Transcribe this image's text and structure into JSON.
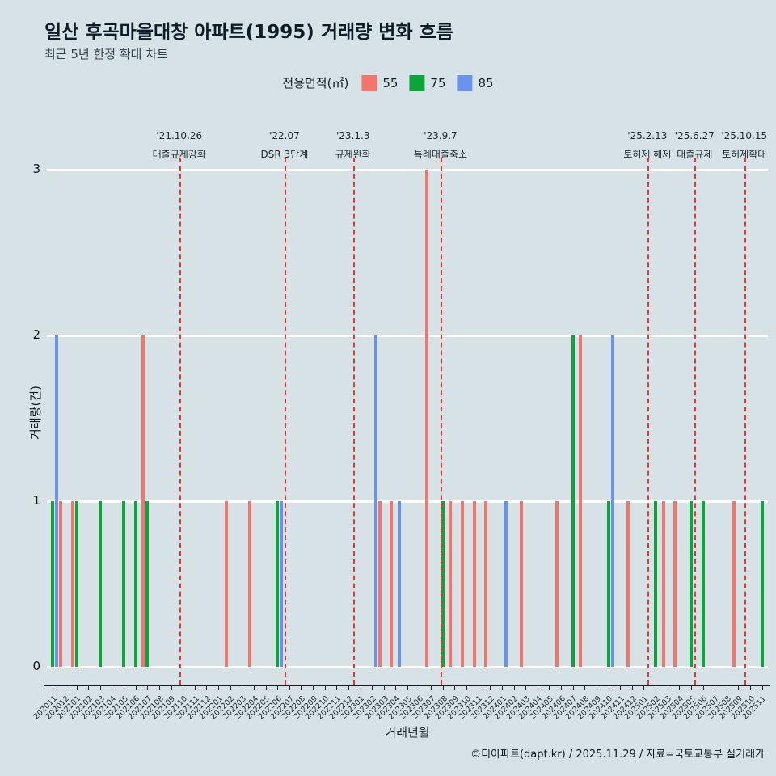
{
  "title": "일산 후곡마을대창 아파트(1995) 거래량 변화 흐름",
  "subtitle": "최근 5년 한정 확대 차트",
  "footer": "©디아파트(dapt.kr) / 2025.11.29 / 자료=국토교통부 실거래가",
  "chart_data": {
    "type": "bar",
    "title": "일산 후곡마을대창 아파트(1995) 거래량 변화 흐름",
    "legend_title": "전용면적(㎡)",
    "xlabel": "거래년월",
    "ylabel": "거래량(건)",
    "ylim": [
      0,
      3
    ],
    "yticks": [
      0,
      1,
      2,
      3
    ],
    "grid": "horizontal-white",
    "legend_position": "top-center",
    "categories": [
      "202011",
      "202012",
      "202101",
      "202102",
      "202103",
      "202104",
      "202105",
      "202106",
      "202107",
      "202108",
      "202109",
      "202110",
      "202111",
      "202112",
      "202201",
      "202202",
      "202203",
      "202204",
      "202205",
      "202206",
      "202207",
      "202208",
      "202209",
      "202210",
      "202211",
      "202212",
      "202301",
      "202302",
      "202303",
      "202304",
      "202305",
      "202306",
      "202307",
      "202308",
      "202309",
      "202310",
      "202311",
      "202312",
      "202401",
      "202402",
      "202403",
      "202404",
      "202405",
      "202406",
      "202407",
      "202408",
      "202409",
      "202410",
      "202411",
      "202412",
      "202501",
      "202502",
      "202503",
      "202504",
      "202505",
      "202506",
      "202507",
      "202508",
      "202509",
      "202510",
      "202511"
    ],
    "series": [
      {
        "name": "55",
        "color": "#f4756c",
        "values": [
          0,
          1,
          1,
          0,
          0,
          0,
          0,
          0,
          2,
          0,
          0,
          0,
          0,
          0,
          0,
          1,
          0,
          1,
          0,
          0,
          0,
          0,
          0,
          0,
          0,
          0,
          0,
          0,
          1,
          1,
          0,
          0,
          3,
          0,
          1,
          1,
          1,
          1,
          0,
          0,
          1,
          0,
          0,
          1,
          0,
          2,
          0,
          0,
          0,
          1,
          0,
          0,
          1,
          1,
          0,
          0,
          0,
          0,
          1,
          0,
          0
        ]
      },
      {
        "name": "75",
        "color": "#0aa639",
        "values": [
          1,
          0,
          1,
          0,
          1,
          0,
          1,
          1,
          1,
          0,
          0,
          0,
          0,
          0,
          0,
          0,
          0,
          0,
          0,
          1,
          0,
          0,
          0,
          0,
          0,
          0,
          0,
          0,
          0,
          0,
          0,
          0,
          0,
          1,
          0,
          0,
          0,
          0,
          0,
          0,
          0,
          0,
          0,
          0,
          2,
          0,
          0,
          1,
          0,
          0,
          0,
          1,
          0,
          0,
          1,
          1,
          0,
          0,
          0,
          0,
          1
        ]
      },
      {
        "name": "85",
        "color": "#6c92f0",
        "values": [
          2,
          0,
          0,
          0,
          0,
          0,
          0,
          0,
          0,
          0,
          0,
          0,
          0,
          0,
          0,
          0,
          0,
          0,
          0,
          1,
          0,
          0,
          0,
          0,
          0,
          0,
          0,
          2,
          0,
          1,
          0,
          0,
          0,
          0,
          0,
          0,
          0,
          0,
          1,
          0,
          0,
          0,
          0,
          0,
          0,
          0,
          0,
          2,
          0,
          0,
          0,
          0,
          0,
          0,
          0,
          0,
          0,
          0,
          0,
          0,
          0
        ]
      }
    ],
    "annotations": [
      {
        "date": "'21.10.26",
        "label": "대출규제강화",
        "x_index": 10.7
      },
      {
        "date": "'22.07",
        "label": "DSR 3단계",
        "x_index": 19.6
      },
      {
        "date": "'23.1.3",
        "label": "규제완화",
        "x_index": 25.4
      },
      {
        "date": "'23.9.7",
        "label": "특례대출축소",
        "x_index": 32.8
      },
      {
        "date": "'25.2.13",
        "label": "토허제 해제",
        "x_index": 50.3
      },
      {
        "date": "'25.6.27",
        "label": "대출규제",
        "x_index": 54.3
      },
      {
        "date": "'25.10.15",
        "label": "토허제확대",
        "x_index": 58.5
      }
    ],
    "annotation_line_color": "#e8372e"
  }
}
